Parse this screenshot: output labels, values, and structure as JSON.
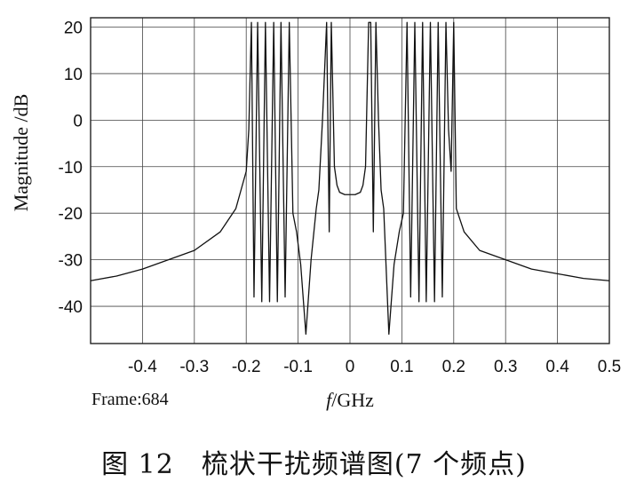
{
  "chart_data": {
    "type": "line",
    "title": "",
    "xlabel_italic": "f",
    "xlabel_rest": "/GHz",
    "ylabel": "Magnitude /dB",
    "xlim": [
      -0.5,
      0.5
    ],
    "ylim": [
      -48,
      22
    ],
    "x_ticks": [
      -0.4,
      -0.3,
      -0.2,
      -0.1,
      0,
      0.1,
      0.2,
      0.3,
      0.4,
      0.5
    ],
    "x_tick_labels": [
      "-0.4",
      "-0.3",
      "-0.2",
      "-0.1",
      "0",
      "0.1",
      "0.2",
      "0.3",
      "0.4",
      "0.5"
    ],
    "y_ticks": [
      20,
      10,
      0,
      -10,
      -20,
      -30,
      -40
    ],
    "y_tick_labels": [
      "20",
      "10",
      "0",
      "-10",
      "-20",
      "-30",
      "-40"
    ],
    "grid": true,
    "series": [
      {
        "x": [
          -0.5,
          -0.45,
          -0.4,
          -0.35,
          -0.3,
          -0.25,
          -0.22,
          -0.2,
          -0.195,
          -0.19,
          -0.185,
          -0.178,
          -0.17,
          -0.163,
          -0.155,
          -0.147,
          -0.14,
          -0.133,
          -0.125,
          -0.117,
          -0.11,
          -0.103,
          -0.095,
          -0.085,
          -0.075,
          -0.065,
          -0.06,
          -0.053,
          -0.045,
          -0.04,
          -0.036,
          -0.03,
          -0.025,
          -0.02,
          -0.01,
          0,
          0.01,
          0.02,
          0.025,
          0.03,
          0.036,
          0.04,
          0.045,
          0.05,
          0.055,
          0.06,
          0.065,
          0.075,
          0.085,
          0.095,
          0.103,
          0.11,
          0.117,
          0.125,
          0.133,
          0.14,
          0.147,
          0.155,
          0.163,
          0.17,
          0.178,
          0.185,
          0.19,
          0.195,
          0.2,
          0.205,
          0.22,
          0.25,
          0.3,
          0.35,
          0.4,
          0.45,
          0.5
        ],
        "y": [
          -34.5,
          -33.5,
          -32,
          -30,
          -28,
          -24,
          -19,
          -11,
          -2,
          21,
          -38,
          21,
          -39,
          21,
          -39,
          21,
          -39,
          21,
          -38,
          21,
          -20,
          -24,
          -31,
          -46,
          -30,
          -19,
          -15,
          0,
          21,
          -24,
          21,
          -10,
          -14,
          -15.5,
          -16,
          -16,
          -16,
          -15.5,
          -14,
          -10,
          21,
          21,
          -24,
          21,
          0,
          -15,
          -19,
          -46,
          -31,
          -24,
          -20,
          21,
          -38,
          21,
          -39,
          21,
          -39,
          21,
          -39,
          21,
          -38,
          21,
          -2,
          -11,
          21,
          -19,
          -24,
          -28,
          -30,
          -32,
          -33,
          -34,
          -34.5
        ]
      }
    ]
  },
  "footer": {
    "frame_label": "Frame:684"
  },
  "caption": "图 12　梳状干扰频谱图(7 个频点)"
}
